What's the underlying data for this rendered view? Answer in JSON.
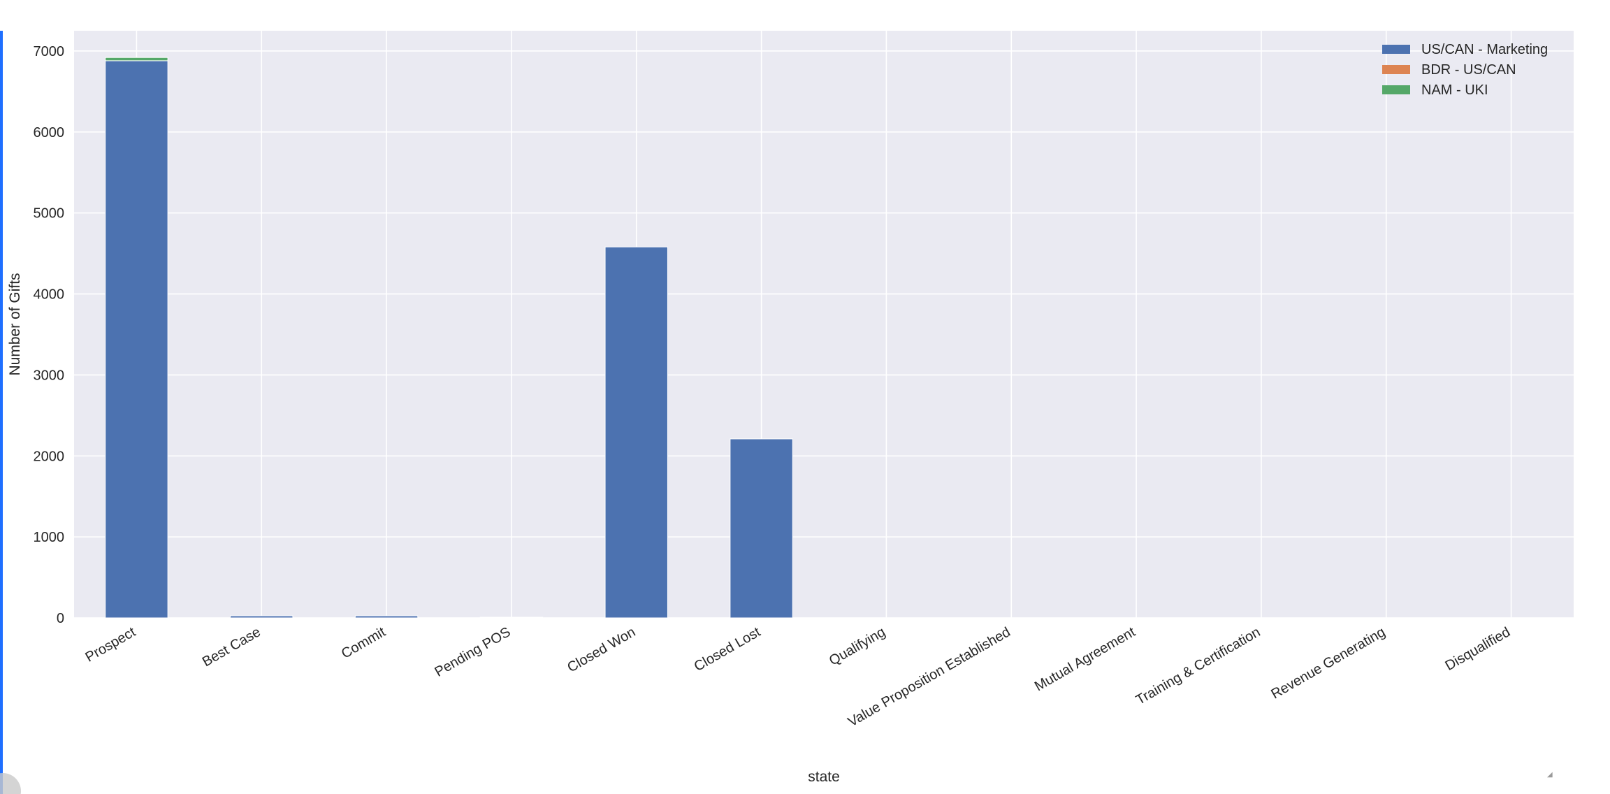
{
  "chart_data": {
    "type": "bar",
    "stacked": true,
    "title": "",
    "xlabel": "state",
    "ylabel": "Number of Gifts",
    "ylim": [
      0,
      7250
    ],
    "yticks": [
      0,
      1000,
      2000,
      3000,
      4000,
      5000,
      6000,
      7000
    ],
    "grid": true,
    "legend_position": "top-right",
    "categories": [
      "Prospect",
      "Best Case",
      "Commit",
      "Pending POS",
      "Closed Won",
      "Closed Lost",
      "Qualifying",
      "Value Proposition Established",
      "Mutual Agreement",
      "Training & Certification",
      "Revenue Generating",
      "Disqualified"
    ],
    "series": [
      {
        "name": "US/CAN - Marketing",
        "color": "#4c72b0",
        "values": [
          6880,
          25,
          25,
          8,
          4580,
          2210,
          0,
          0,
          0,
          0,
          0,
          0
        ]
      },
      {
        "name": "BDR - US/CAN",
        "color": "#dd8452",
        "values": [
          0,
          0,
          0,
          0,
          0,
          0,
          0,
          0,
          0,
          0,
          0,
          0
        ]
      },
      {
        "name": "NAM - UKI",
        "color": "#55a868",
        "values": [
          40,
          0,
          0,
          0,
          0,
          0,
          0,
          0,
          0,
          0,
          0,
          0
        ]
      }
    ]
  }
}
